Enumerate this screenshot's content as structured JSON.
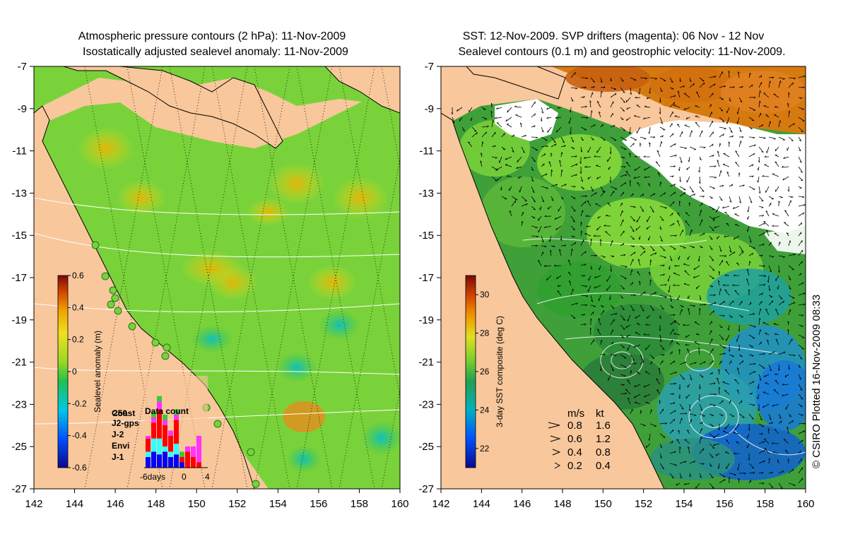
{
  "left_panel": {
    "title_line1": "Atmospheric pressure contours (2 hPa): 11-Nov-2009",
    "title_line2": "Isostatically adjusted sealevel anomaly: 11-Nov-2009",
    "colorbar": {
      "label": "Sealevel anomaly (m)",
      "ticks": [
        "0.6",
        "0.4",
        "0.2",
        "0",
        "-0.2",
        "-0.4",
        "-0.6"
      ],
      "range": [
        -0.6,
        0.6
      ]
    },
    "histogram": {
      "title": "Data count",
      "count_label": "250",
      "legend": [
        {
          "name": "Jason-1",
          "color": "#0000ff",
          "label": "J-1"
        },
        {
          "name": "Envisat",
          "color": "#33ffff",
          "label": "Envi"
        },
        {
          "name": "Jason-2",
          "color": "#ff0000",
          "label": "J-2"
        },
        {
          "name": "Jason-2 GPS",
          "color": "#ff33ff",
          "label": "J2-gps"
        },
        {
          "name": "Coastal",
          "color": "#33cc33",
          "label": "Coast"
        }
      ],
      "x_labels": [
        "-6days",
        "0",
        "4"
      ]
    }
  },
  "right_panel": {
    "title_line1": "SST: 12-Nov-2009. SVP drifters (magenta): 06 Nov - 12 Nov",
    "title_line2": "Sealevel contours (0.1 m) and geostrophic velocity: 11-Nov-2009.",
    "colorbar": {
      "label": "3-day SST composite (deg C)",
      "ticks": [
        "30",
        "28",
        "26",
        "24",
        "22"
      ],
      "range": [
        21,
        31
      ]
    },
    "velocity_key": {
      "header_ms": "m/s",
      "header_kt": "kt",
      "rows": [
        {
          "ms": "0.8",
          "kt": "1.6"
        },
        {
          "ms": "0.6",
          "kt": "1.2"
        },
        {
          "ms": "0.4",
          "kt": "0.8"
        },
        {
          "ms": "0.2",
          "kt": "0.4"
        }
      ]
    }
  },
  "axes": {
    "lat_ticks": [
      "-7",
      "-9",
      "-11",
      "-13",
      "-15",
      "-17",
      "-19",
      "-21",
      "-23",
      "-25",
      "-27"
    ],
    "lon_ticks": [
      "142",
      "144",
      "146",
      "148",
      "150",
      "152",
      "154",
      "156",
      "158",
      "160"
    ],
    "lat_range": [
      -27,
      -7
    ],
    "lon_range": [
      142,
      160
    ]
  },
  "credit": "© CSIRO Plotted 16-Nov-2009 08:33",
  "colors": {
    "land": "#f8c79b",
    "ocean_base": "#7ad23a",
    "cloud": "#ffffff",
    "contour_white": "#ffffff",
    "coast": "#000000"
  }
}
